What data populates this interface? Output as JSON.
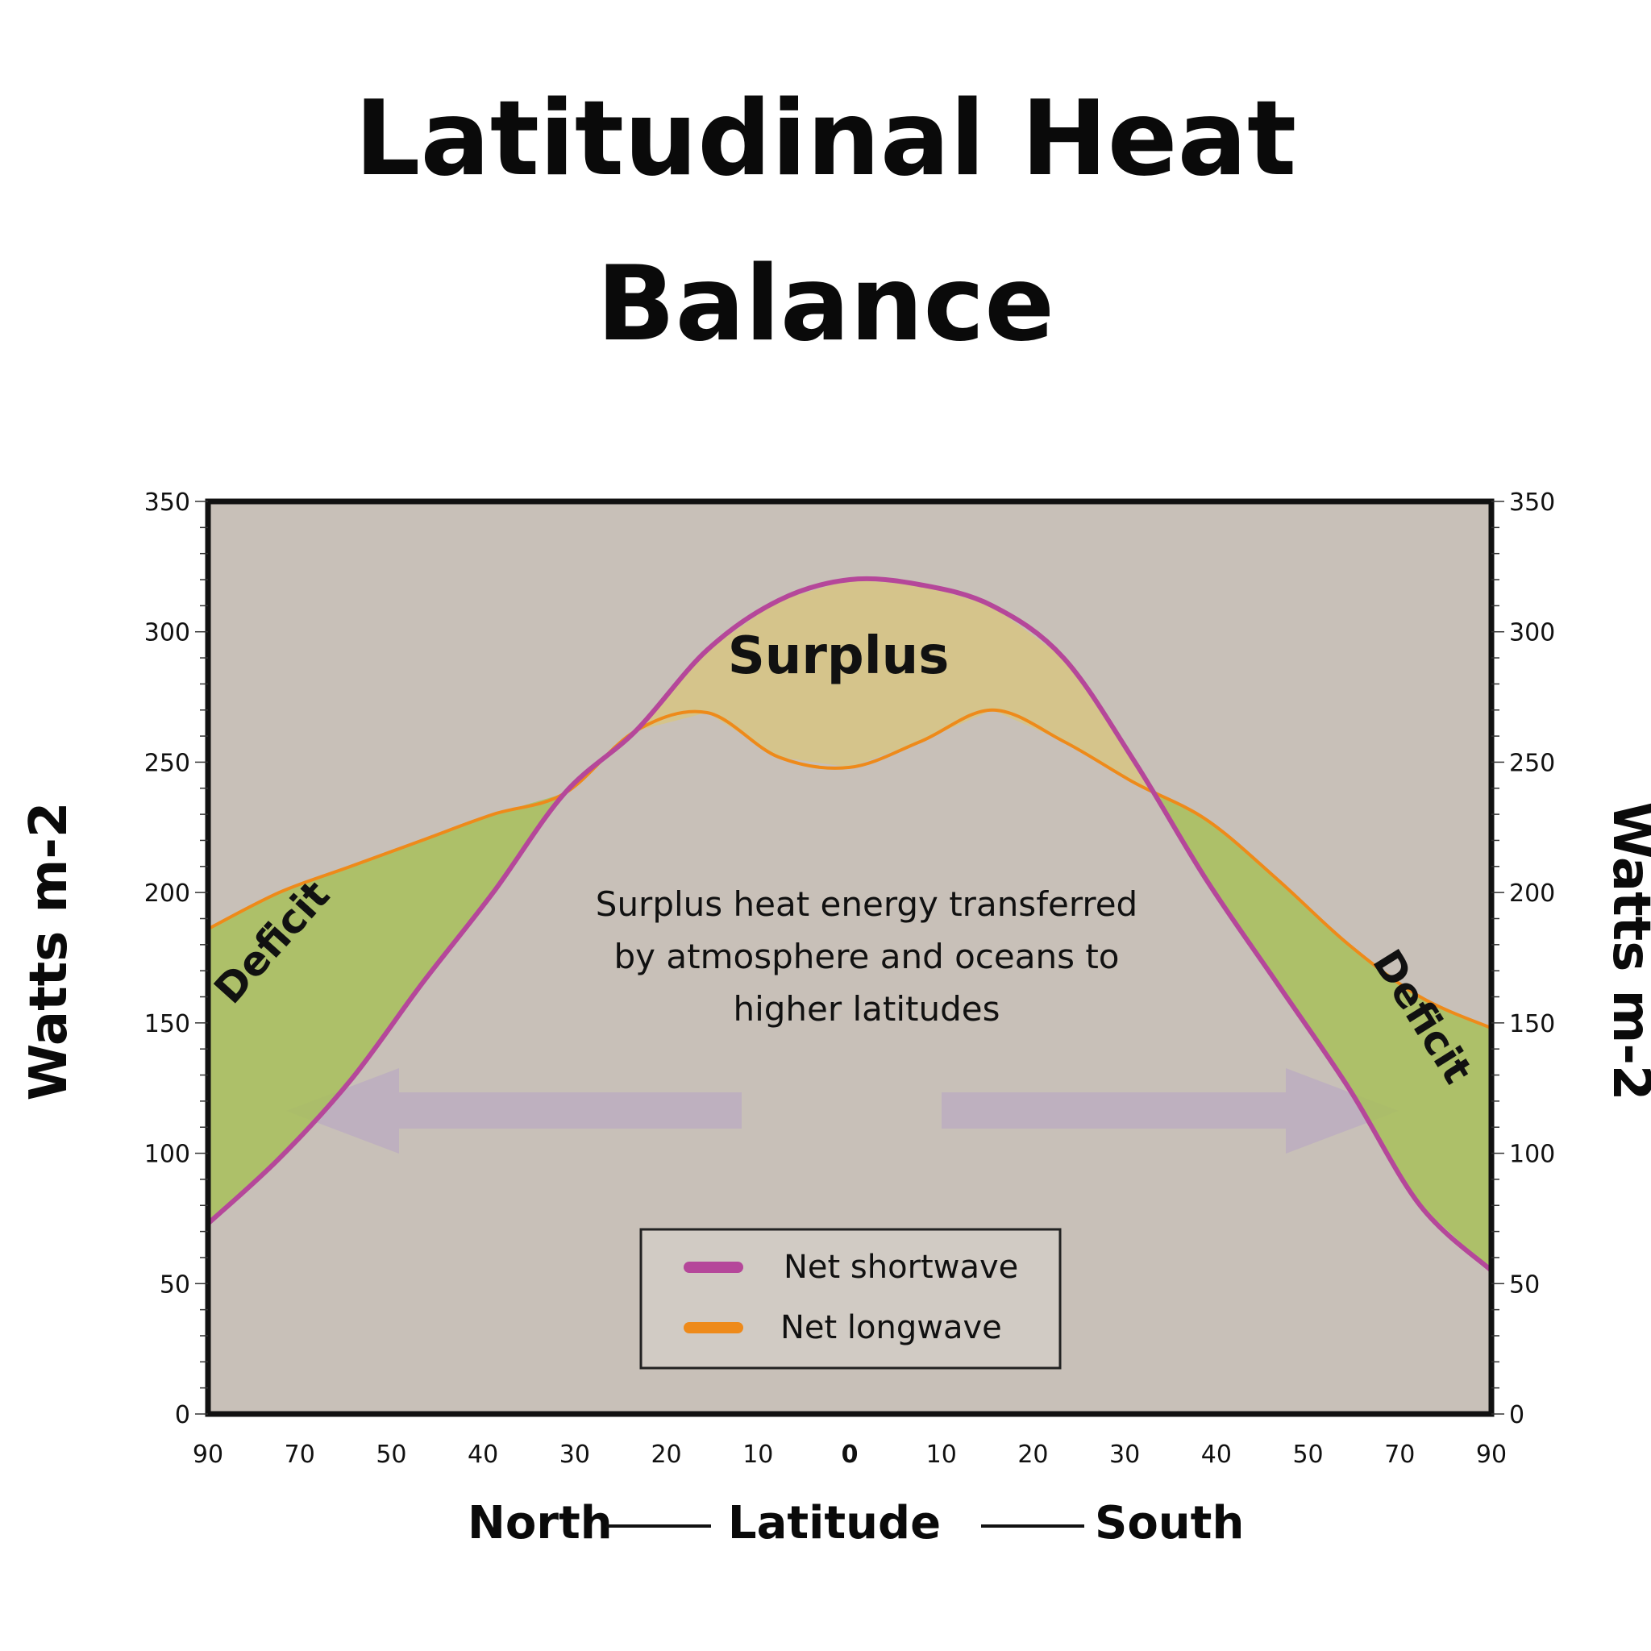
{
  "title_lines": [
    "Latitudinal Heat",
    "Balance"
  ],
  "chart_data": {
    "type": "line",
    "title": "Latitudinal Heat Balance",
    "ylabel": "Watts m-2",
    "ylabel_right": "Watts m-2",
    "ylim": [
      0,
      350
    ],
    "y_ticks": [
      0,
      50,
      100,
      150,
      200,
      250,
      300,
      350
    ],
    "x_ticks": [
      "90",
      "70",
      "50",
      "40",
      "30",
      "20",
      "10",
      "0",
      "10",
      "20",
      "30",
      "40",
      "50",
      "70",
      "90"
    ],
    "x_title": {
      "left": "North",
      "center": "Latitude",
      "right": "South"
    },
    "x": [
      90,
      80,
      70,
      60,
      50,
      40,
      30,
      20,
      10,
      0,
      10,
      20,
      30,
      40,
      50,
      60,
      70,
      80,
      90
    ],
    "x_label": "Latitude (degrees, North to South)",
    "series": [
      {
        "name": "Net shortwave",
        "color": "#b5479a",
        "values": [
          73,
          98,
          128,
          165,
          200,
          238,
          262,
          293,
          312,
          320,
          318,
          310,
          290,
          250,
          205,
          165,
          125,
          80,
          55
        ]
      },
      {
        "name": "Net longwave",
        "color": "#ee8a1a",
        "values": [
          186,
          200,
          210,
          220,
          230,
          238,
          262,
          269,
          252,
          248,
          258,
          270,
          258,
          242,
          228,
          205,
          180,
          160,
          148
        ]
      }
    ],
    "regions": [
      {
        "label": "Surplus",
        "type": "surplus",
        "color": "#d9c67c"
      },
      {
        "label": "Deficit",
        "type": "deficit-north",
        "color": "#a8c05a"
      },
      {
        "label": "Deficit",
        "type": "deficit-south",
        "color": "#a8c05a"
      }
    ],
    "annotation": [
      "Surplus heat energy transferred",
      "by atmosphere and oceans to",
      "higher latitudes"
    ],
    "legend": {
      "position": "bottom-center"
    },
    "colors": {
      "plot_background": "#c8c0b8",
      "arrow": "#b7a2c4"
    }
  }
}
